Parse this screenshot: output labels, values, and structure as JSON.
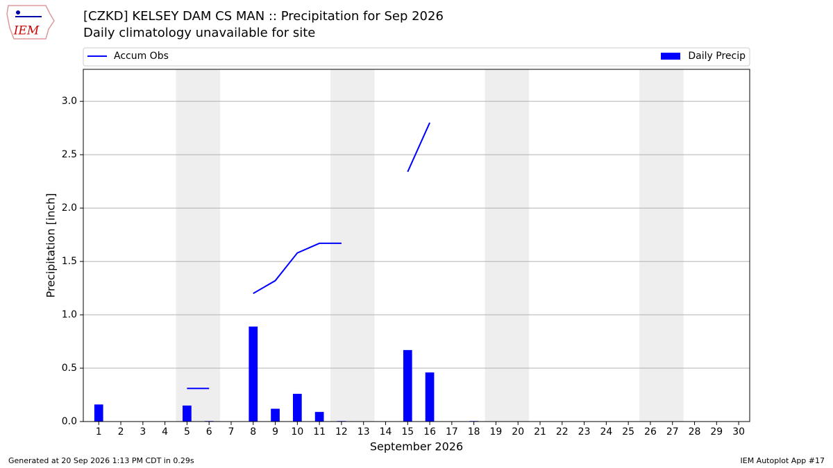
{
  "logo": "IEM",
  "footer": {
    "left": "Generated at 20 Sep 2026 1:13 PM CDT in 0.29s",
    "right": "IEM Autoplot App #17"
  },
  "chart_data": {
    "type": "bar",
    "title": "[CZKD] KELSEY DAM CS  MAN :: Precipitation for Sep 2026",
    "subtitle": "Daily climatology unavailable for site",
    "x_label": "September 2026",
    "y_label": "Precipitation [inch]",
    "x": [
      1,
      2,
      3,
      4,
      5,
      6,
      7,
      8,
      9,
      10,
      11,
      12,
      13,
      14,
      15,
      16,
      17,
      18,
      19,
      20,
      21,
      22,
      23,
      24,
      25,
      26,
      27,
      28,
      29,
      30
    ],
    "series": [
      {
        "name": "Accum Obs",
        "type": "line",
        "color": "#0000ff",
        "values": [
          null,
          null,
          null,
          null,
          0.31,
          0.31,
          null,
          1.2,
          1.32,
          1.58,
          1.67,
          1.67,
          null,
          null,
          2.34,
          2.8,
          null,
          null,
          null,
          null,
          null,
          null,
          null,
          null,
          null,
          null,
          null,
          null,
          null,
          null
        ]
      },
      {
        "name": "Daily Precip",
        "type": "bar",
        "color": "#0000ff",
        "values": [
          0.16,
          0,
          0,
          0,
          0.15,
          0.005,
          0,
          0.89,
          0.12,
          0.26,
          0.09,
          0.005,
          0,
          0,
          0.67,
          0.46,
          0,
          0.005,
          0,
          0,
          0,
          0,
          0,
          0,
          0,
          0,
          0,
          0,
          0,
          0
        ]
      }
    ],
    "shaded_ranges": [
      [
        4.5,
        6.5
      ],
      [
        11.5,
        13.5
      ],
      [
        18.5,
        20.5
      ],
      [
        25.5,
        27.5
      ]
    ],
    "shade_color": "#eeeeee",
    "xlim": [
      0.3,
      30.5
    ],
    "ylim": [
      0,
      3.3
    ],
    "xticks": [
      1,
      2,
      3,
      4,
      5,
      6,
      7,
      8,
      9,
      10,
      11,
      12,
      13,
      14,
      15,
      16,
      17,
      18,
      19,
      20,
      21,
      22,
      23,
      24,
      25,
      26,
      27,
      28,
      29,
      30
    ],
    "yticks": [
      {
        "value": 0,
        "label": "0.0"
      },
      {
        "value": 0.5,
        "label": "0.5"
      },
      {
        "value": 1,
        "label": "1.0"
      },
      {
        "value": 1.5,
        "label": "1.5"
      },
      {
        "value": 2,
        "label": "2.0"
      },
      {
        "value": 2.5,
        "label": "2.5"
      },
      {
        "value": 3,
        "label": "3.0"
      }
    ],
    "grid": true,
    "legend": "top"
  }
}
